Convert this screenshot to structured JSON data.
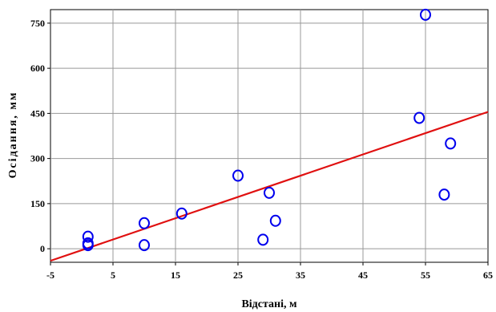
{
  "chart_data": {
    "type": "scatter",
    "xlabel": "Відстані, м",
    "ylabel": "Осідання, мм",
    "xlim": [
      -5,
      65
    ],
    "ylim": [
      -45,
      795
    ],
    "xticks": [
      -5,
      5,
      15,
      25,
      35,
      45,
      55,
      65
    ],
    "yticks": [
      0,
      150,
      300,
      450,
      600,
      750
    ],
    "x_tick_labels": [
      "-5",
      "5",
      "15",
      "25",
      "35",
      "45",
      "55",
      "65"
    ],
    "y_tick_labels": [
      "0",
      "150",
      "300",
      "450",
      "600",
      "750"
    ],
    "grid": true,
    "legend": "none",
    "points": [
      {
        "x": 1,
        "y": 40
      },
      {
        "x": 1,
        "y": 18
      },
      {
        "x": 1,
        "y": 12
      },
      {
        "x": 10,
        "y": 85
      },
      {
        "x": 10,
        "y": 12
      },
      {
        "x": 16,
        "y": 117
      },
      {
        "x": 25,
        "y": 243
      },
      {
        "x": 29,
        "y": 30
      },
      {
        "x": 30,
        "y": 186
      },
      {
        "x": 31,
        "y": 93
      },
      {
        "x": 54,
        "y": 435
      },
      {
        "x": 55,
        "y": 778
      },
      {
        "x": 58,
        "y": 180
      },
      {
        "x": 59,
        "y": 350
      }
    ],
    "trendline": {
      "x": [
        -5,
        65
      ],
      "y": [
        -40,
        455
      ]
    },
    "colors": {
      "points": "#0000ee",
      "trendline": "#e01010",
      "grid": "#999999"
    }
  }
}
